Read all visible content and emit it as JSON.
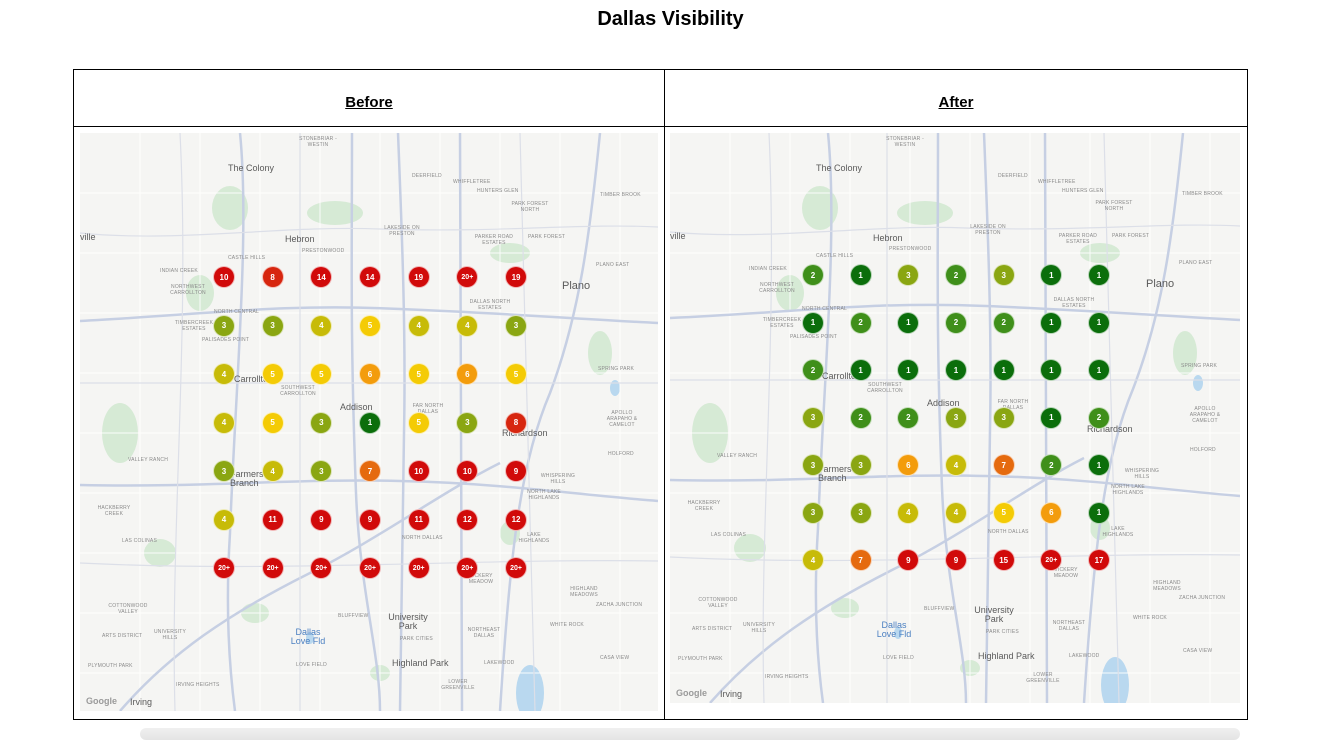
{
  "title": "Dallas Visibility",
  "panels": [
    {
      "heading": "Before",
      "grid": [
        [
          "10",
          "8",
          "14",
          "14",
          "19",
          "20+",
          "19"
        ],
        [
          "3",
          "3",
          "4",
          "5",
          "4",
          "4",
          "3"
        ],
        [
          "4",
          "5",
          "5",
          "6",
          "5",
          "6",
          "5"
        ],
        [
          "4",
          "5",
          "3",
          "1",
          "5",
          "3",
          "8"
        ],
        [
          "3",
          "4",
          "3",
          "7",
          "10",
          "10",
          "9"
        ],
        [
          "4",
          "11",
          "9",
          "9",
          "11",
          "12",
          "12"
        ],
        [
          "20+",
          "20+",
          "20+",
          "20+",
          "20+",
          "20+",
          "20+"
        ]
      ]
    },
    {
      "heading": "After",
      "grid": [
        [
          "2",
          "1",
          "3",
          "2",
          "3",
          "1",
          "1"
        ],
        [
          "1",
          "2",
          "1",
          "2",
          "2",
          "1",
          "1"
        ],
        [
          "2",
          "1",
          "1",
          "1",
          "1",
          "1",
          "1"
        ],
        [
          "3",
          "2",
          "2",
          "3",
          "3",
          "1",
          "2"
        ],
        [
          "3",
          "3",
          "6",
          "4",
          "7",
          "2",
          "1"
        ],
        [
          "3",
          "3",
          "4",
          "4",
          "5",
          "6",
          "1"
        ],
        [
          "4",
          "7",
          "9",
          "9",
          "15",
          "20+",
          "17"
        ]
      ]
    }
  ],
  "colors": {
    "1": "#0b6e0b",
    "2": "#3f8f1a",
    "3": "#8aa612",
    "4": "#c7bb08",
    "5": "#f4cb05",
    "6": "#f39c0c",
    "7": "#e56a0e",
    "8": "#d7260f",
    "9plus": "#d10a0a"
  },
  "map_labels": {
    "the_colony": "The Colony",
    "hebron": "Hebron",
    "plano": "Plano",
    "carrollton": "Carrollton",
    "addison": "Addison",
    "richardson": "Richardson",
    "farmers_branch": "Farmers Branch",
    "university_park": "University Park",
    "highland_park": "Highland Park",
    "irving": "Irving",
    "dallas_love_fld": "Dallas Love Fld",
    "ville": "ville",
    "stonebriar": "STONEBRIAR - WESTIN",
    "deerfield": "DEERFIELD",
    "whiffletree": "WHIFFLETREE",
    "hunters_glen": "HUNTERS GLEN",
    "park_forest_north": "PARK FOREST NORTH",
    "timber_brook": "TIMBER BROOK",
    "lakeside": "LAKESIDE ON PRESTON",
    "parker_road": "PARKER ROAD ESTATES",
    "park_forest": "PARK FOREST",
    "castle_hills": "CASTLE HILLS",
    "prestonwood": "PRESTONWOOD",
    "indian_creek": "INDIAN CREEK",
    "northwest_carrollton": "NORTHWEST CARROLLTON",
    "plano_east": "PLANO EAST",
    "dallas_north_estates": "DALLAS NORTH ESTATES",
    "north_central": "NORTH CENTRAL",
    "timbercreek": "TIMBERCREEK ESTATES",
    "palisades_point": "PALISADES POINT",
    "spring_park": "SPRING PARK",
    "southwest_carrollton": "SOUTHWEST CARROLLTON",
    "far_north_dallas": "FAR NORTH DALLAS",
    "apollo": "APOLLO ARAPAHO & CAMELOT",
    "holford": "HOLFORD",
    "valley_ranch": "VALLEY RANCH",
    "whispering_hills": "WHISPERING HILLS",
    "north_lake_highlands": "NORTH LAKE HIGHLANDS",
    "hackberry_creek": "HACKBERRY CREEK",
    "las_colinas": "LAS COLINAS",
    "north_dallas": "NORTH DALLAS",
    "lake_highlands": "LAKE HIGHLANDS",
    "vickery_meadow": "VICKERY MEADOW",
    "highland_meadows": "HIGHLAND MEADOWS",
    "zacha_junction": "ZACHA JUNCTION",
    "cottonwood_valley": "COTTONWOOD VALLEY",
    "bluffview": "BLUFFVIEW",
    "white_rock": "WHITE ROCK",
    "arts_district": "ARTS DISTRICT",
    "university_hills": "UNIVERSITY HILLS",
    "park_cities": "PARK CITIES",
    "northeast_dallas": "NORTHEAST DALLAS",
    "love_field": "LOVE FIELD",
    "plymouth_park": "PLYMOUTH PARK",
    "irving_heights": "IRVING HEIGHTS",
    "lakewood": "LAKEWOOD",
    "lower_greenville": "LOWER GREENVILLE",
    "casa_view": "CASA VIEW",
    "google": "Google"
  }
}
